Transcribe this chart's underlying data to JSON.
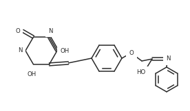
{
  "bg_color": "#ffffff",
  "line_color": "#2a2a2a",
  "line_width": 1.1,
  "font_size": 6.2,
  "figsize": [
    2.76,
    1.62
  ],
  "dpi": 100,
  "xlim": [
    0,
    276
  ],
  "ylim": [
    0,
    162
  ]
}
